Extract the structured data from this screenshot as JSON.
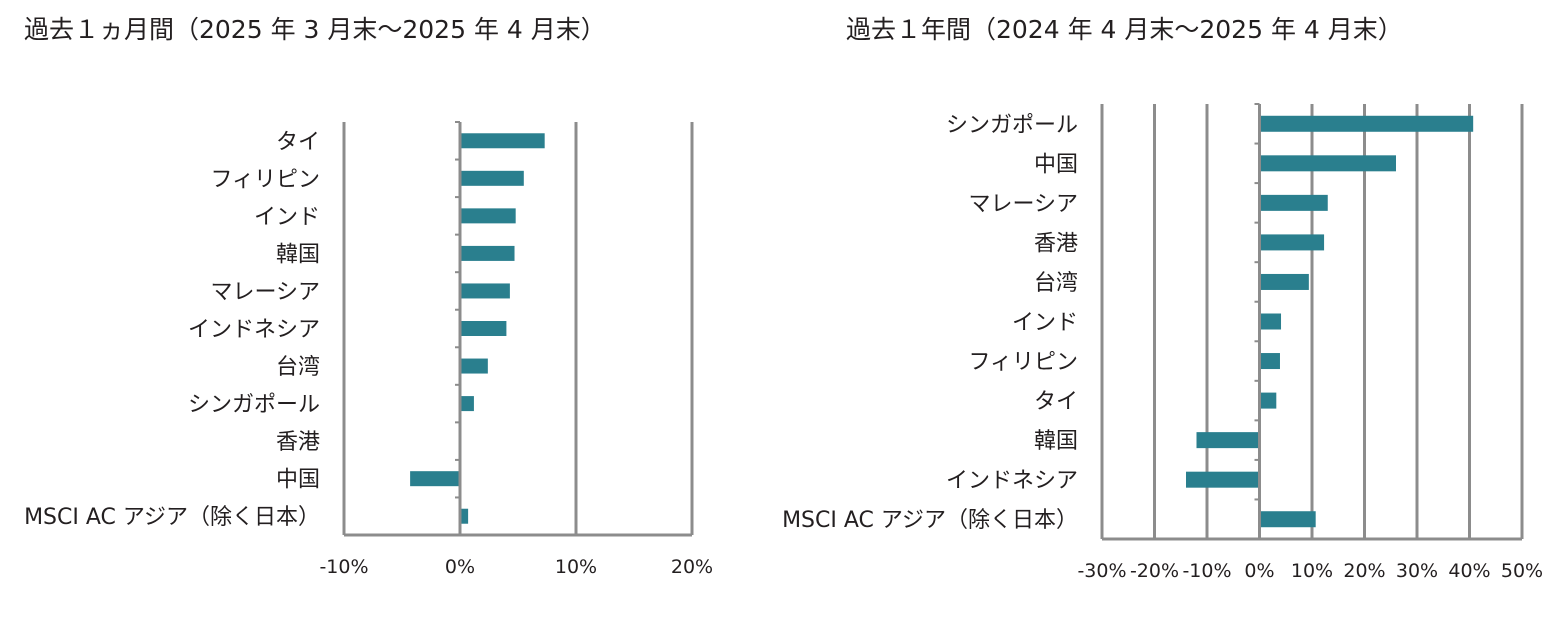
{
  "chart_data": [
    {
      "type": "bar",
      "orientation": "horizontal",
      "title": "過去１ヵ月間（2025 年 3 月末～2025 年 4 月末）",
      "categories": [
        "タイ",
        "フィリピン",
        "インド",
        "韓国",
        "マレーシア",
        "インドネシア",
        "台湾",
        "シンガポール",
        "香港",
        "中国",
        "MSCI AC アジア（除く日本）"
      ],
      "values": [
        7.3,
        5.5,
        4.8,
        4.7,
        4.3,
        4.0,
        2.4,
        1.2,
        0.0,
        -4.3,
        0.7
      ],
      "xlim": [
        -10,
        20
      ],
      "ticks": [
        -10,
        0,
        10,
        20
      ],
      "tick_labels": [
        "-10%",
        "0%",
        "10%",
        "20%"
      ],
      "xlabel": "",
      "ylabel": "",
      "grid": "vertical",
      "legend": "none",
      "bar_color": "#2a7f8e",
      "grid_color": "#8c8c8c"
    },
    {
      "type": "bar",
      "orientation": "horizontal",
      "title": "過去１年間（2024 年 4 月末～2025 年 4 月末）",
      "categories": [
        "シンガポール",
        "中国",
        "マレーシア",
        "香港",
        "台湾",
        "インド",
        "フィリピン",
        "タイ",
        "韓国",
        "インドネシア",
        "MSCI AC アジア（除く日本）"
      ],
      "values": [
        40.7,
        26.0,
        13.0,
        12.3,
        9.4,
        4.1,
        3.9,
        3.2,
        -12.0,
        -14.0,
        10.7
      ],
      "xlim": [
        -30,
        50
      ],
      "ticks": [
        -30,
        -20,
        -10,
        0,
        10,
        20,
        30,
        40,
        50
      ],
      "tick_labels": [
        "-30%",
        "-20%",
        "-10%",
        "0%",
        "10%",
        "20%",
        "30%",
        "40%",
        "50%"
      ],
      "xlabel": "",
      "ylabel": "",
      "grid": "vertical",
      "legend": "none",
      "bar_color": "#2a7f8e",
      "grid_color": "#8c8c8c"
    }
  ]
}
